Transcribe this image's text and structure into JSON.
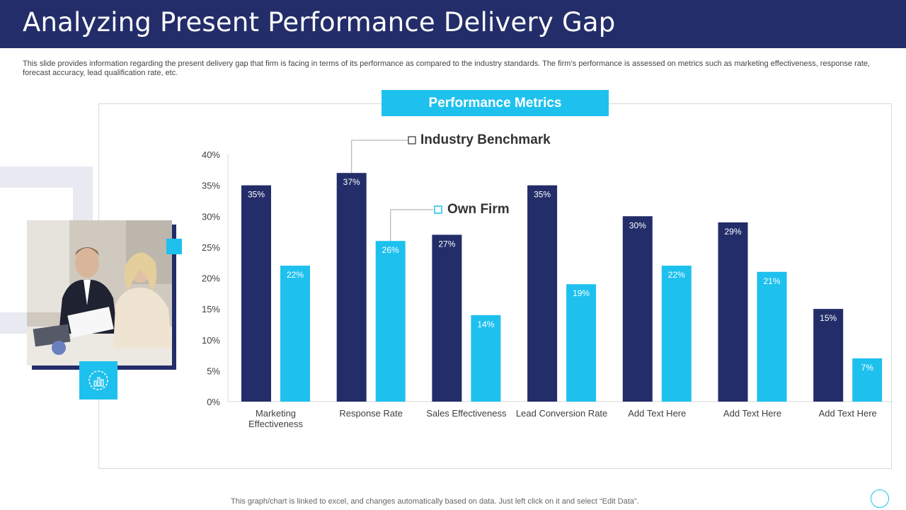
{
  "title": "Analyzing Present Performance Delivery Gap",
  "description": "This slide provides information regarding the present delivery gap that firm is facing in terms of its performance as compared to the industry standards. The firm’s performance is assessed on metrics such as marketing effectiveness, response rate, forecast accuracy, lead qualification rate, etc.",
  "panel_title": "Performance Metrics",
  "footer": "This graph/chart is linked to excel,  and changes automatically based on data. Just left click on it and select “Edit Data”.",
  "colors": {
    "navy": "#232D69",
    "cyan": "#1EC1EE",
    "axis_text": "#404040"
  },
  "icons": {
    "badge": "chart-analysis-icon",
    "nav": "circle-icon"
  },
  "chart_data": {
    "type": "bar",
    "categories": [
      [
        "Marketing",
        "Effectiveness"
      ],
      [
        "Response Rate"
      ],
      [
        "Sales Effectiveness"
      ],
      [
        "Lead Conversion Rate"
      ],
      [
        "Add Text Here"
      ],
      [
        "Add Text Here"
      ],
      [
        "Add Text Here"
      ]
    ],
    "series": [
      {
        "name": "Industry Benchmark",
        "values": [
          35,
          37,
          27,
          35,
          30,
          29,
          15
        ],
        "labels": [
          "35%",
          "37%",
          "27%",
          "35%",
          "30%",
          "29%",
          "15%"
        ]
      },
      {
        "name": "Own Firm",
        "values": [
          22,
          26,
          14,
          19,
          22,
          21,
          7
        ],
        "labels": [
          "22%",
          "26%",
          "14%",
          "19%",
          "22%",
          "21%",
          "7%"
        ]
      }
    ],
    "ylim": [
      0,
      40
    ],
    "yticks": [
      0,
      5,
      10,
      15,
      20,
      25,
      30,
      35,
      40
    ],
    "ytick_labels": [
      "0%",
      "5%",
      "10%",
      "15%",
      "20%",
      "25%",
      "30%",
      "35%",
      "40%"
    ],
    "title": "Performance Metrics",
    "xlabel": "",
    "ylabel": "",
    "grid": false,
    "legend": "callouts"
  }
}
